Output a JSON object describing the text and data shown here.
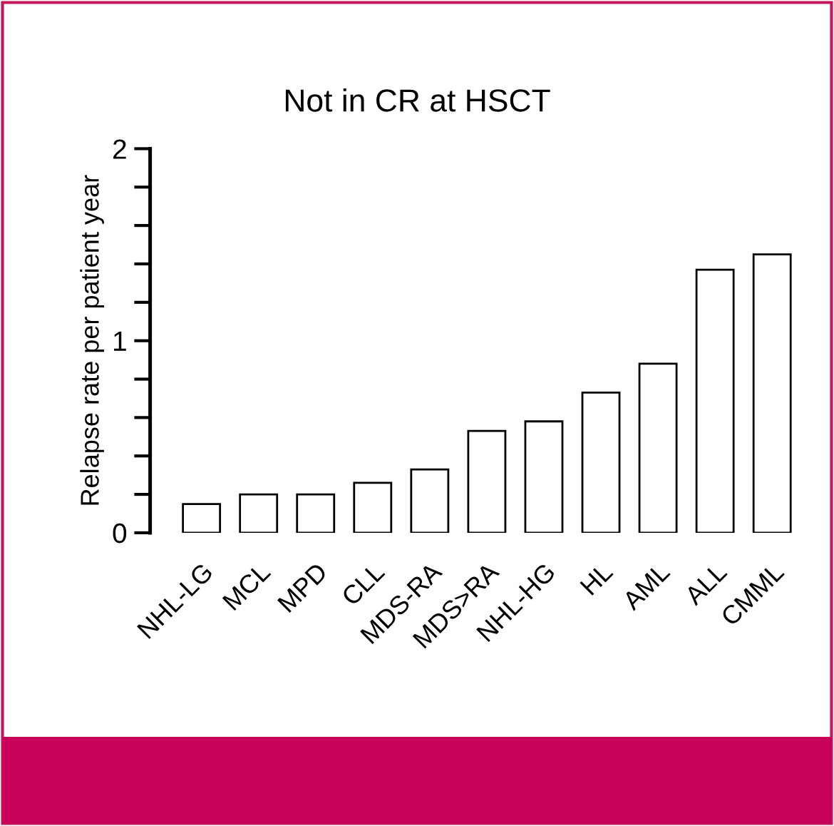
{
  "chart_data": {
    "type": "bar",
    "title": "Not in CR at HSCT",
    "ylabel": "Relapse rate per patient year",
    "categories": [
      "NHL-LG",
      "MCL",
      "MPD",
      "CLL",
      "MDS-RA",
      "MDS>RA",
      "NHL-HG",
      "HL",
      "AML",
      "ALL",
      "CMML"
    ],
    "values": [
      0.15,
      0.2,
      0.2,
      0.26,
      0.33,
      0.53,
      0.58,
      0.73,
      0.88,
      1.37,
      1.45
    ],
    "color": "#ffffff",
    "ylim": [
      0,
      2
    ],
    "yticks": [
      0,
      {
        "value": 0.2,
        "label": null
      },
      {
        "value": 0.4,
        "label": null
      },
      {
        "value": 0.6,
        "label": null
      },
      {
        "value": 0.8,
        "label": null
      },
      1,
      {
        "value": 1.2,
        "label": null
      },
      {
        "value": 1.4,
        "label": null
      },
      {
        "value": 1.6,
        "label": null
      },
      {
        "value": 1.8,
        "label": null
      },
      2
    ],
    "grid": false,
    "legend": false
  }
}
